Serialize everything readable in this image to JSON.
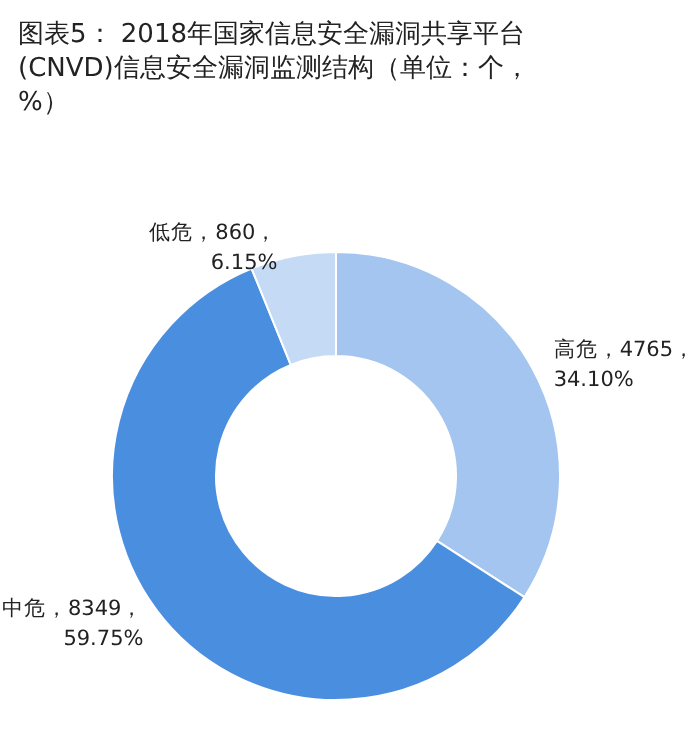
{
  "chart_data": {
    "type": "donut",
    "title": "图表5： 2018年国家信息安全漏洞共享平台(CNVD)信息安全漏洞监测结构（单位：个，%）",
    "categories": [
      "高危",
      "中危",
      "低危"
    ],
    "values": [
      34.1,
      59.75,
      6.15
    ],
    "value_labels": [
      "4765，\n34.10%",
      "8349，\n59.75%",
      "860，\n6.15%"
    ],
    "colors": [
      "#a3c5f0",
      "#4a8ee0",
      "#c4daf5"
    ],
    "legend": false
  }
}
